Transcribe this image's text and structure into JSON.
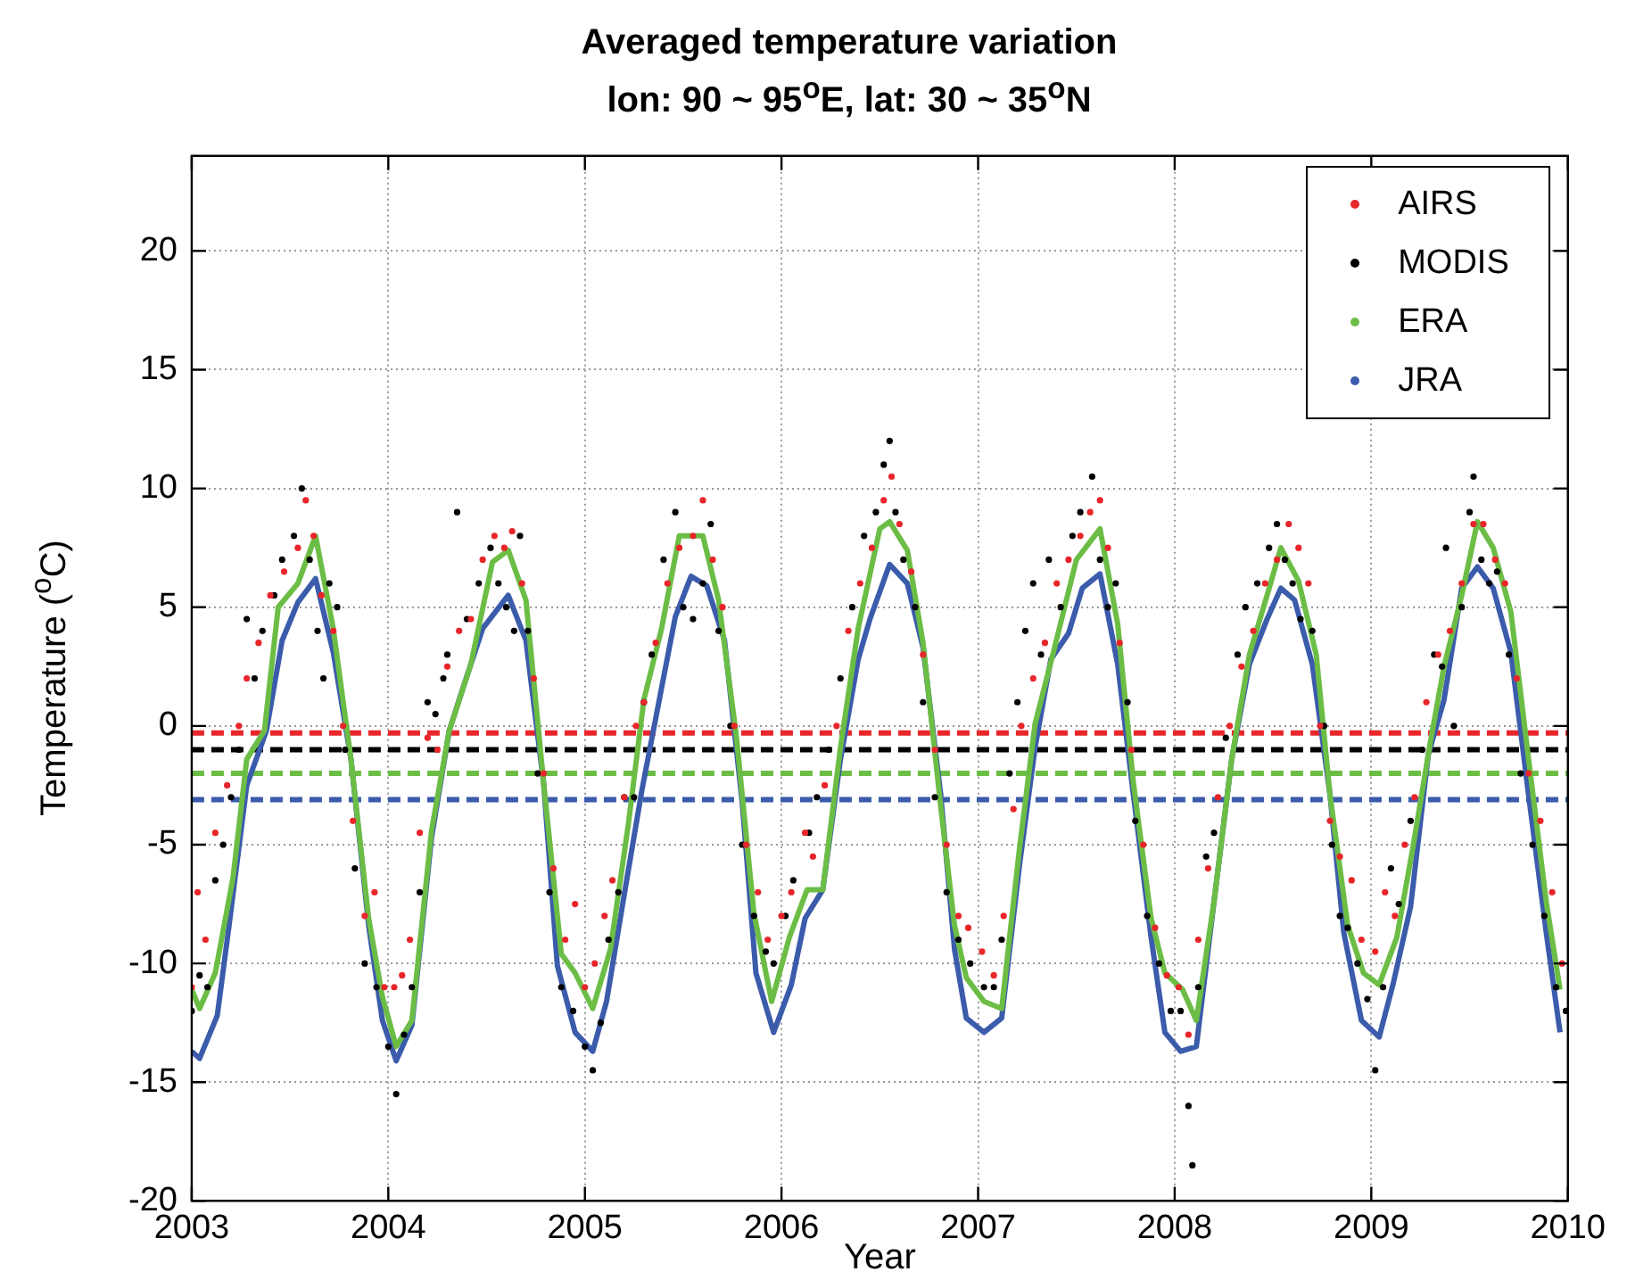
{
  "chart_data": {
    "type": "line",
    "title": "Averaged temperature variation",
    "subtitle": "lon: 90 ~ 95$^{o}$E, lat: 30 ~ 35$^{o}$N",
    "xlabel": "Year",
    "ylabel": "Temperature ($^{o}$C)",
    "xlim": [
      2003,
      2010
    ],
    "xticks": [
      2003,
      2004,
      2005,
      2006,
      2007,
      2008,
      2009,
      2010
    ],
    "ylim": [
      -20,
      24
    ],
    "yticks": [
      -20,
      -15,
      -10,
      -5,
      0,
      5,
      10,
      15,
      20
    ],
    "grid": true,
    "legend": "top right",
    "series": [
      {
        "name": "AIRS",
        "type": "scatter",
        "marker": "circle",
        "color": "#e8262a",
        "x": [
          2003.0,
          2003.03,
          2003.07,
          2003.12,
          2003.18,
          2003.24,
          2003.28,
          2003.34,
          2003.4,
          2003.47,
          2003.54,
          2003.58,
          2003.62,
          2003.66,
          2003.72,
          2003.77,
          2003.82,
          2003.88,
          2003.93,
          2003.98,
          2004.03,
          2004.07,
          2004.11,
          2004.16,
          2004.2,
          2004.25,
          2004.3,
          2004.36,
          2004.42,
          2004.48,
          2004.54,
          2004.59,
          2004.63,
          2004.68,
          2004.74,
          2004.79,
          2004.84,
          2004.9,
          2004.95,
          2005.0,
          2005.05,
          2005.1,
          2005.14,
          2005.2,
          2005.26,
          2005.3,
          2005.36,
          2005.42,
          2005.48,
          2005.55,
          2005.6,
          2005.65,
          2005.7,
          2005.76,
          2005.82,
          2005.88,
          2005.93,
          2006.0,
          2006.05,
          2006.12,
          2006.16,
          2006.22,
          2006.28,
          2006.34,
          2006.4,
          2006.46,
          2006.52,
          2006.56,
          2006.6,
          2006.66,
          2006.72,
          2006.78,
          2006.84,
          2006.9,
          2006.95,
          2007.02,
          2007.08,
          2007.13,
          2007.18,
          2007.22,
          2007.28,
          2007.34,
          2007.4,
          2007.46,
          2007.52,
          2007.57,
          2007.62,
          2007.66,
          2007.72,
          2007.78,
          2007.84,
          2007.9,
          2007.96,
          2008.02,
          2008.07,
          2008.12,
          2008.17,
          2008.22,
          2008.28,
          2008.34,
          2008.4,
          2008.46,
          2008.52,
          2008.58,
          2008.63,
          2008.68,
          2008.74,
          2008.79,
          2008.84,
          2008.9,
          2008.95,
          2009.02,
          2009.07,
          2009.12,
          2009.17,
          2009.22,
          2009.28,
          2009.34,
          2009.4,
          2009.46,
          2009.52,
          2009.57,
          2009.63,
          2009.68,
          2009.74,
          2009.8,
          2009.86,
          2009.92,
          2009.97
        ],
        "values": [
          -11,
          -7,
          -9,
          -4.5,
          -2.5,
          0,
          2,
          3.5,
          5.5,
          6.5,
          7.5,
          9.5,
          8,
          5.5,
          4,
          0,
          -4,
          -8,
          -7,
          -11,
          -11,
          -10.5,
          -9,
          -4.5,
          -0.5,
          -1,
          2.5,
          4,
          4.5,
          7,
          8,
          7.5,
          8.2,
          6,
          2,
          -2,
          -6,
          -9,
          -7.5,
          -11,
          -10,
          -8,
          -6.5,
          -3,
          0,
          1,
          3.5,
          6,
          7.5,
          8,
          9.5,
          7,
          5,
          0,
          -5,
          -7,
          -9,
          -8,
          -7,
          -4.5,
          -5.5,
          -2.5,
          0,
          4,
          6,
          7.5,
          9.5,
          10.5,
          8.5,
          6.5,
          3,
          -1,
          -5,
          -8,
          -8.5,
          -9.5,
          -10.5,
          -8,
          -3.5,
          0,
          2,
          3.5,
          6,
          7,
          8,
          9,
          9.5,
          7.5,
          3.5,
          -1,
          -5,
          -8.5,
          -10.5,
          -11,
          -13,
          -9,
          -6,
          -3,
          0,
          2.5,
          4,
          6,
          7,
          8.5,
          7.5,
          6,
          0,
          -4,
          -5.5,
          -6.5,
          -9,
          -9.5,
          -7,
          -8,
          -5,
          -3,
          1,
          3,
          4,
          6,
          8.5,
          8.5,
          7,
          6,
          2,
          -2,
          -4,
          -7,
          -10
        ]
      },
      {
        "name": "MODIS",
        "type": "scatter",
        "marker": "circle",
        "color": "#000000",
        "x": [
          2003.0,
          2003.04,
          2003.08,
          2003.12,
          2003.16,
          2003.2,
          2003.24,
          2003.28,
          2003.32,
          2003.36,
          2003.42,
          2003.46,
          2003.52,
          2003.56,
          2003.6,
          2003.64,
          2003.67,
          2003.7,
          2003.74,
          2003.78,
          2003.83,
          2003.88,
          2003.94,
          2004.0,
          2004.04,
          2004.08,
          2004.12,
          2004.16,
          2004.2,
          2004.24,
          2004.28,
          2004.3,
          2004.35,
          2004.4,
          2004.46,
          2004.52,
          2004.56,
          2004.6,
          2004.64,
          2004.67,
          2004.71,
          2004.76,
          2004.82,
          2004.88,
          2004.94,
          2005.0,
          2005.04,
          2005.08,
          2005.12,
          2005.17,
          2005.2,
          2005.25,
          2005.3,
          2005.34,
          2005.4,
          2005.46,
          2005.5,
          2005.55,
          2005.6,
          2005.64,
          2005.68,
          2005.74,
          2005.8,
          2005.86,
          2005.92,
          2005.96,
          2006.02,
          2006.06,
          2006.14,
          2006.18,
          2006.24,
          2006.3,
          2006.36,
          2006.42,
          2006.48,
          2006.52,
          2006.55,
          2006.58,
          2006.62,
          2006.68,
          2006.72,
          2006.78,
          2006.84,
          2006.9,
          2006.96,
          2007.03,
          2007.08,
          2007.12,
          2007.16,
          2007.2,
          2007.24,
          2007.28,
          2007.32,
          2007.36,
          2007.42,
          2007.48,
          2007.52,
          2007.58,
          2007.62,
          2007.66,
          2007.7,
          2007.76,
          2007.8,
          2007.86,
          2007.92,
          2007.98,
          2008.03,
          2008.07,
          2008.09,
          2008.12,
          2008.16,
          2008.2,
          2008.26,
          2008.32,
          2008.36,
          2008.42,
          2008.48,
          2008.52,
          2008.56,
          2008.6,
          2008.64,
          2008.7,
          2008.76,
          2008.8,
          2008.84,
          2008.88,
          2008.93,
          2008.98,
          2009.02,
          2009.06,
          2009.1,
          2009.14,
          2009.2,
          2009.26,
          2009.32,
          2009.36,
          2009.38,
          2009.42,
          2009.46,
          2009.5,
          2009.52,
          2009.56,
          2009.6,
          2009.64,
          2009.7,
          2009.76,
          2009.82,
          2009.88,
          2009.94,
          2009.99
        ],
        "values": [
          -12,
          -10.5,
          -11,
          -6.5,
          -5,
          -3,
          -1,
          4.5,
          2,
          4,
          5.5,
          7,
          8,
          10,
          7,
          4,
          2,
          6,
          5,
          -1,
          -6,
          -10,
          -11,
          -13.5,
          -15.5,
          -13,
          -11,
          -7,
          1,
          0.5,
          2,
          3,
          9,
          4.5,
          6,
          7.5,
          6,
          5,
          4,
          8,
          4,
          -2,
          -7,
          -11,
          -12,
          -13.5,
          -14.5,
          -12.5,
          -9,
          -7,
          -3,
          -3,
          1,
          3,
          7,
          9,
          5,
          4.5,
          6,
          8.5,
          4,
          0,
          -5,
          -8,
          -9.5,
          -10,
          -8,
          -6.5,
          -4.5,
          -3,
          -1,
          2,
          5,
          8,
          9,
          11,
          12,
          9,
          7,
          5,
          1,
          -3,
          -7,
          -9,
          -10,
          -11,
          -11,
          -9,
          -2,
          1,
          4,
          6,
          3,
          7,
          5,
          8,
          9,
          10.5,
          7,
          5,
          6,
          1,
          -4,
          -8,
          -10,
          -12,
          -12,
          -16,
          -18.5,
          -11,
          -5.5,
          -4.5,
          -0.5,
          3,
          5,
          6,
          7.5,
          8.5,
          7,
          6,
          4.5,
          4,
          0,
          -5,
          -8,
          -8.5,
          -10,
          -11.5,
          -14.5,
          -11,
          -6,
          -7.5,
          -4,
          -1,
          3,
          2.5,
          7.5,
          0,
          5,
          9,
          10.5,
          7,
          6,
          6.5,
          3,
          -2,
          -5,
          -8,
          -11,
          -12
        ]
      },
      {
        "name": "ERA",
        "marker": "none",
        "color": "#6cbd45",
        "x": [
          2003.0,
          2003.04,
          2003.12,
          2003.21,
          2003.28,
          2003.37,
          2003.44,
          2003.54,
          2003.63,
          2003.72,
          2003.81,
          2003.9,
          2003.97,
          2004.04,
          2004.12,
          2004.22,
          2004.31,
          2004.42,
          2004.53,
          2004.61,
          2004.7,
          2004.79,
          2004.88,
          2004.95,
          2005.04,
          2005.13,
          2005.22,
          2005.3,
          2005.39,
          2005.48,
          2005.6,
          2005.68,
          2005.77,
          2005.86,
          2005.95,
          2006.04,
          2006.13,
          2006.21,
          2006.3,
          2006.39,
          2006.5,
          2006.55,
          2006.64,
          2006.72,
          2006.81,
          2006.88,
          2006.94,
          2007.03,
          2007.12,
          2007.21,
          2007.29,
          2007.38,
          2007.5,
          2007.62,
          2007.71,
          2007.79,
          2007.88,
          2007.95,
          2008.04,
          2008.11,
          2008.2,
          2008.29,
          2008.38,
          2008.47,
          2008.54,
          2008.63,
          2008.72,
          2008.79,
          2008.88,
          2008.96,
          2009.04,
          2009.13,
          2009.21,
          2009.3,
          2009.37,
          2009.46,
          2009.54,
          2009.62,
          2009.71,
          2009.8,
          2009.89,
          2009.96
        ],
        "values": [
          -11.1,
          -11.9,
          -10.4,
          -6.4,
          -1.4,
          -0.2,
          5,
          6,
          8,
          4.1,
          -1.4,
          -8.1,
          -11.4,
          -13.5,
          -12.4,
          -4.4,
          -0.2,
          2.6,
          6.9,
          7.4,
          5.3,
          -2.4,
          -9.6,
          -10.4,
          -11.9,
          -9.4,
          -4.2,
          1.1,
          4.1,
          8,
          8,
          5.3,
          -0.4,
          -7.9,
          -11.6,
          -8.9,
          -6.9,
          -6.9,
          -0.9,
          4.1,
          8.3,
          8.6,
          7.4,
          3.5,
          -3.4,
          -8.4,
          -10.6,
          -11.6,
          -11.9,
          -5.2,
          0.1,
          3,
          7,
          8.3,
          4.3,
          -2.4,
          -8.1,
          -10.4,
          -11.1,
          -12.4,
          -7.4,
          -1.4,
          3,
          5.5,
          7.5,
          6.1,
          3,
          -2.9,
          -8.4,
          -10.4,
          -10.9,
          -8.9,
          -5.2,
          -0.7,
          2.5,
          5.5,
          8.6,
          7.5,
          4.8,
          -1.4,
          -7.4,
          -11.1
        ]
      },
      {
        "name": "JRA",
        "marker": "none",
        "color": "#3b5bab",
        "x": [
          2003.0,
          2003.04,
          2003.13,
          2003.19,
          2003.28,
          2003.38,
          2003.46,
          2003.54,
          2003.63,
          2003.72,
          2003.81,
          2003.9,
          2003.97,
          2004.04,
          2004.12,
          2004.22,
          2004.31,
          2004.38,
          2004.48,
          2004.61,
          2004.7,
          2004.79,
          2004.86,
          2004.95,
          2005.04,
          2005.11,
          2005.2,
          2005.29,
          2005.39,
          2005.46,
          2005.54,
          2005.62,
          2005.71,
          2005.8,
          2005.87,
          2005.96,
          2006.05,
          2006.12,
          2006.21,
          2006.3,
          2006.39,
          2006.45,
          2006.55,
          2006.64,
          2006.72,
          2006.81,
          2006.88,
          2006.94,
          2007.03,
          2007.12,
          2007.21,
          2007.29,
          2007.37,
          2007.46,
          2007.53,
          2007.62,
          2007.71,
          2007.79,
          2007.88,
          2007.95,
          2008.03,
          2008.11,
          2008.2,
          2008.29,
          2008.38,
          2008.47,
          2008.54,
          2008.61,
          2008.7,
          2008.79,
          2008.86,
          2008.95,
          2009.04,
          2009.11,
          2009.2,
          2009.29,
          2009.37,
          2009.46,
          2009.54,
          2009.62,
          2009.71,
          2009.8,
          2009.89,
          2009.96
        ],
        "values": [
          -13.7,
          -14,
          -12.2,
          -8.4,
          -2.5,
          -0.2,
          3.6,
          5.2,
          6.2,
          3.1,
          -1.4,
          -8.4,
          -12.4,
          -14.1,
          -12.6,
          -4.7,
          -0.2,
          1.6,
          4.1,
          5.5,
          3.6,
          -2.4,
          -10.1,
          -12.9,
          -13.7,
          -11.6,
          -7.1,
          -2.7,
          1.6,
          4.6,
          6.3,
          5.9,
          3.6,
          -3.2,
          -10.4,
          -12.9,
          -10.9,
          -8.1,
          -6.9,
          -1.4,
          2.8,
          4.5,
          6.8,
          6,
          3.3,
          -2.9,
          -9.4,
          -12.3,
          -12.9,
          -12.3,
          -5.9,
          -0.9,
          2.8,
          3.9,
          5.8,
          6.4,
          2.6,
          -2.9,
          -8.9,
          -12.9,
          -13.7,
          -13.5,
          -7.4,
          -1.4,
          2.6,
          4.5,
          5.8,
          5.3,
          2.6,
          -2.9,
          -8.7,
          -12.4,
          -13.1,
          -10.9,
          -7.6,
          -1.2,
          1.1,
          5.8,
          6.7,
          5.8,
          3.1,
          -2.9,
          -8.7,
          -12.9
        ]
      }
    ],
    "ref_lines": [
      {
        "axis": "y",
        "value": -0.3,
        "color": "#e8262a",
        "line_style": "dashed"
      },
      {
        "axis": "y",
        "value": -1.0,
        "color": "#000000",
        "line_style": "dashed"
      },
      {
        "axis": "y",
        "value": -2.0,
        "color": "#6cbd45",
        "line_style": "dashed"
      },
      {
        "axis": "y",
        "value": -3.1,
        "color": "#3b5bab",
        "line_style": "dashed"
      }
    ]
  }
}
